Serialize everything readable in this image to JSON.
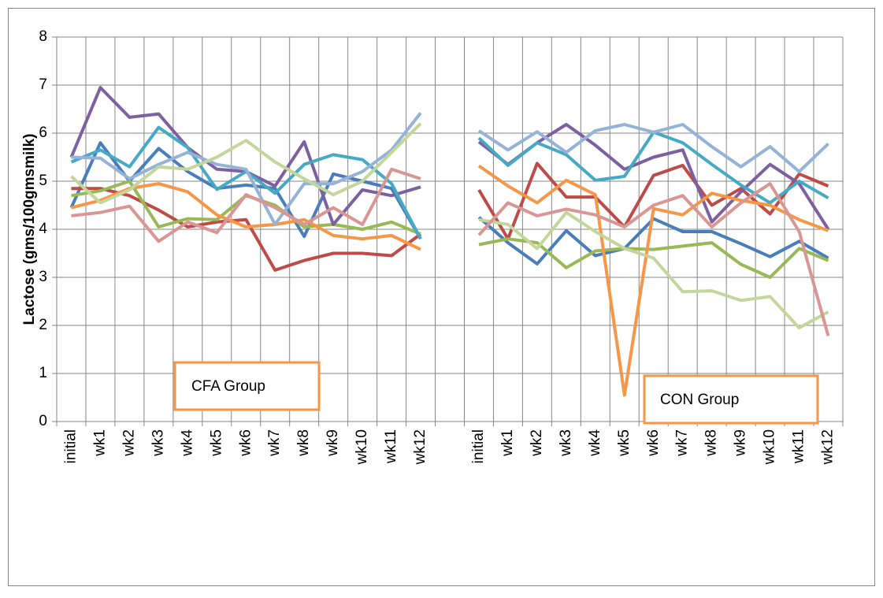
{
  "chart_data": {
    "type": "line",
    "y_label": "Lactose (gms/100gmsmilk)",
    "annotations": [
      "CFA Group",
      "CON Group"
    ],
    "categories": [
      "initial",
      "wk1",
      "wk2",
      "wk3",
      "wk4",
      "wk5",
      "wk6",
      "wk7",
      "wk8",
      "wk9",
      "wk10",
      "wk11",
      "wk12",
      null,
      "initial",
      "wk1",
      "wk2",
      "wk3",
      "wk4",
      "wk5",
      "wk6",
      "wk7",
      "wk8",
      "wk9",
      "wk10",
      "wk11",
      "wk12"
    ],
    "ylim": [
      0,
      8
    ],
    "yticks": [
      0,
      1,
      2,
      3,
      4,
      5,
      6,
      7,
      8
    ],
    "grid": true,
    "series": [
      {
        "color": "#4a7ebb",
        "values": [
          4.45,
          5.8,
          5.0,
          5.68,
          5.2,
          4.85,
          4.92,
          4.85,
          3.85,
          5.15,
          5.0,
          4.85,
          3.8,
          null,
          4.25,
          3.72,
          3.28,
          3.97,
          3.45,
          3.6,
          4.22,
          3.95,
          3.95,
          3.7,
          3.43,
          3.75,
          3.4
        ]
      },
      {
        "color": "#be4b48",
        "values": [
          4.85,
          4.85,
          4.7,
          4.4,
          4.05,
          4.15,
          4.2,
          3.15,
          3.35,
          3.5,
          3.5,
          3.45,
          3.9,
          null,
          4.82,
          3.8,
          5.37,
          4.67,
          4.67,
          4.05,
          5.12,
          5.33,
          4.5,
          4.85,
          4.32,
          5.15,
          4.9
        ]
      },
      {
        "color": "#98b954",
        "values": [
          4.7,
          4.8,
          5.0,
          4.05,
          4.22,
          4.2,
          4.7,
          4.5,
          4.05,
          4.1,
          4.0,
          4.15,
          3.9,
          null,
          3.68,
          3.8,
          3.72,
          3.2,
          3.55,
          3.6,
          3.58,
          3.65,
          3.72,
          3.27,
          3.0,
          3.6,
          3.35
        ]
      },
      {
        "color": "#7d60a0",
        "values": [
          5.5,
          6.95,
          6.33,
          6.4,
          5.7,
          5.25,
          5.2,
          4.9,
          5.82,
          4.1,
          4.82,
          4.7,
          4.88,
          null,
          5.82,
          5.35,
          5.8,
          6.18,
          5.75,
          5.25,
          5.5,
          5.65,
          4.15,
          4.78,
          5.35,
          4.95,
          4.0
        ]
      },
      {
        "color": "#46aac5",
        "values": [
          5.4,
          5.65,
          5.3,
          6.12,
          5.7,
          4.83,
          5.2,
          4.75,
          5.35,
          5.55,
          5.45,
          4.95,
          3.8,
          null,
          5.9,
          5.33,
          5.8,
          5.55,
          5.02,
          5.1,
          6.02,
          5.8,
          5.35,
          4.92,
          4.55,
          5.0,
          4.65
        ]
      },
      {
        "color": "#f79646",
        "values": [
          4.45,
          4.6,
          4.85,
          4.95,
          4.78,
          4.3,
          4.05,
          4.1,
          4.2,
          3.87,
          3.8,
          3.87,
          3.58,
          null,
          5.32,
          4.9,
          4.55,
          5.02,
          4.72,
          0.55,
          4.43,
          4.3,
          4.75,
          4.6,
          4.5,
          4.2,
          3.97
        ]
      },
      {
        "color": "#95b3d7",
        "values": [
          5.5,
          5.48,
          5.05,
          5.35,
          5.6,
          5.35,
          5.25,
          4.1,
          4.95,
          4.95,
          5.2,
          5.65,
          6.42,
          null,
          6.05,
          5.65,
          6.03,
          5.6,
          6.05,
          6.18,
          6.02,
          6.18,
          5.72,
          5.3,
          5.72,
          5.2,
          5.78
        ]
      },
      {
        "color": "#c3d69b",
        "values": [
          5.1,
          4.55,
          4.82,
          5.3,
          5.25,
          5.5,
          5.85,
          5.4,
          5.05,
          4.72,
          5.0,
          5.6,
          6.2,
          null,
          4.2,
          4.1,
          3.6,
          4.35,
          3.95,
          3.6,
          3.4,
          2.7,
          2.72,
          2.52,
          2.6,
          1.95,
          2.28
        ]
      },
      {
        "color": "#d99694",
        "values": [
          4.28,
          4.35,
          4.48,
          3.75,
          4.15,
          3.93,
          4.72,
          4.45,
          4.1,
          4.45,
          4.1,
          5.25,
          5.05,
          null,
          3.88,
          4.55,
          4.28,
          4.42,
          4.3,
          4.05,
          4.5,
          4.7,
          4.05,
          4.55,
          4.95,
          3.95,
          1.78
        ]
      }
    ]
  }
}
